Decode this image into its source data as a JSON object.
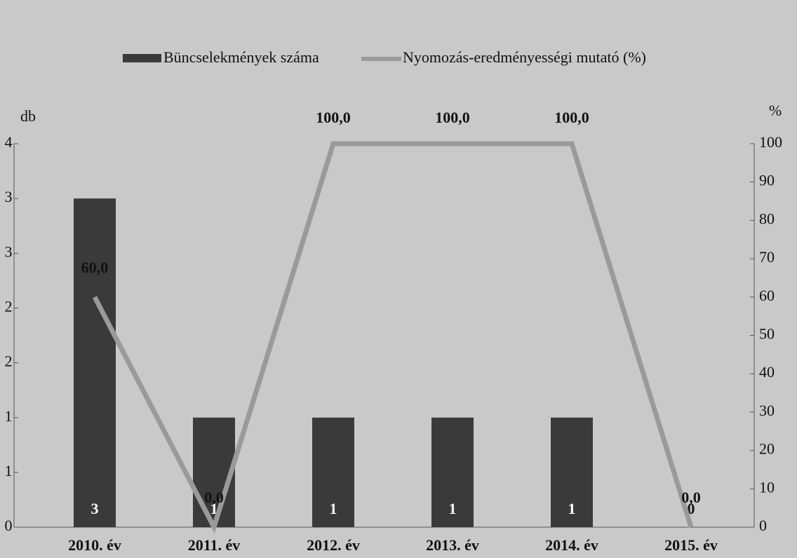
{
  "chart_data": {
    "type": "bar_line",
    "legend": [
      "Büncselekmények száma",
      "Nyomozás-eredményességi mutató (%)"
    ],
    "y_label": "db",
    "y2_label": "%",
    "categories": [
      "2010. év",
      "2011. év",
      "2012. év",
      "2013. év",
      "2014. év",
      "2015. év"
    ],
    "series": [
      {
        "name": "Büncselekmények száma",
        "type": "bar",
        "color": "#3a3a3a",
        "values": [
          3,
          1,
          1,
          1,
          1,
          0
        ],
        "value_labels": [
          "3",
          "1",
          "1",
          "1",
          "1",
          "0"
        ]
      },
      {
        "name": "Nyomozás-eredményességi mutató (%)",
        "type": "line",
        "axis": "y2",
        "color": "#9a9a9a",
        "values": [
          60,
          0,
          100,
          100,
          100,
          0
        ],
        "value_labels": [
          "60,0",
          "0,0",
          "100,0",
          "100,0",
          "100,0",
          "0,0"
        ]
      }
    ],
    "ylim": [
      0,
      3.5
    ],
    "yticks": [
      0,
      {
        "value": 0.5,
        "label": "1"
      },
      1,
      {
        "value": 1.5,
        "label": "2"
      },
      2,
      {
        "value": 2.5,
        "label": "3"
      },
      3,
      {
        "value": 3.5,
        "label": "4"
      }
    ],
    "y2lim": [
      0,
      100
    ],
    "y2ticks": [
      0,
      10,
      20,
      30,
      40,
      50,
      60,
      70,
      80,
      90,
      100
    ]
  }
}
